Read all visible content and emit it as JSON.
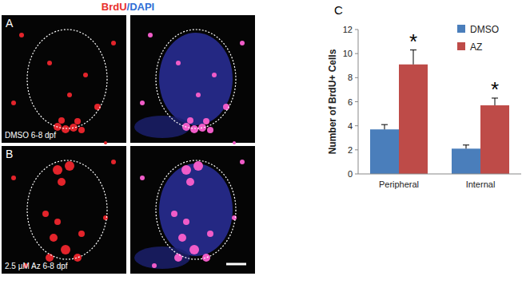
{
  "header": [
    {
      "text": "BrdU",
      "color": "#e8302c"
    },
    {
      "text": "/DAPI",
      "color": "#2f6fd6"
    }
  ],
  "panels": [
    {
      "letter": "A",
      "caption": "DMSO 6-8 dpf"
    },
    {
      "letter": "B",
      "caption": "2.5 µM Az 6-8 dpf"
    }
  ],
  "chart_data": {
    "type": "bar",
    "panel_letter": "C",
    "y_label": "Number of BrdU+ Cells",
    "categories": [
      "Peripheral",
      "Internal"
    ],
    "series": [
      {
        "name": "DMSO",
        "color": "#4a7ebb",
        "values": [
          3.7,
          2.1
        ],
        "errors": [
          0.4,
          0.3
        ]
      },
      {
        "name": "AZ",
        "color": "#be4b48",
        "values": [
          9.1,
          5.7
        ],
        "errors": [
          1.2,
          0.6
        ]
      }
    ],
    "annotations": [
      {
        "text": "*",
        "category": 0,
        "series": 1
      },
      {
        "text": "*",
        "category": 1,
        "series": 1
      }
    ],
    "ylim": [
      0,
      12
    ],
    "yticks": [
      0,
      2,
      4,
      6,
      8,
      10,
      12
    ],
    "grid": false,
    "legend": "top-right"
  }
}
